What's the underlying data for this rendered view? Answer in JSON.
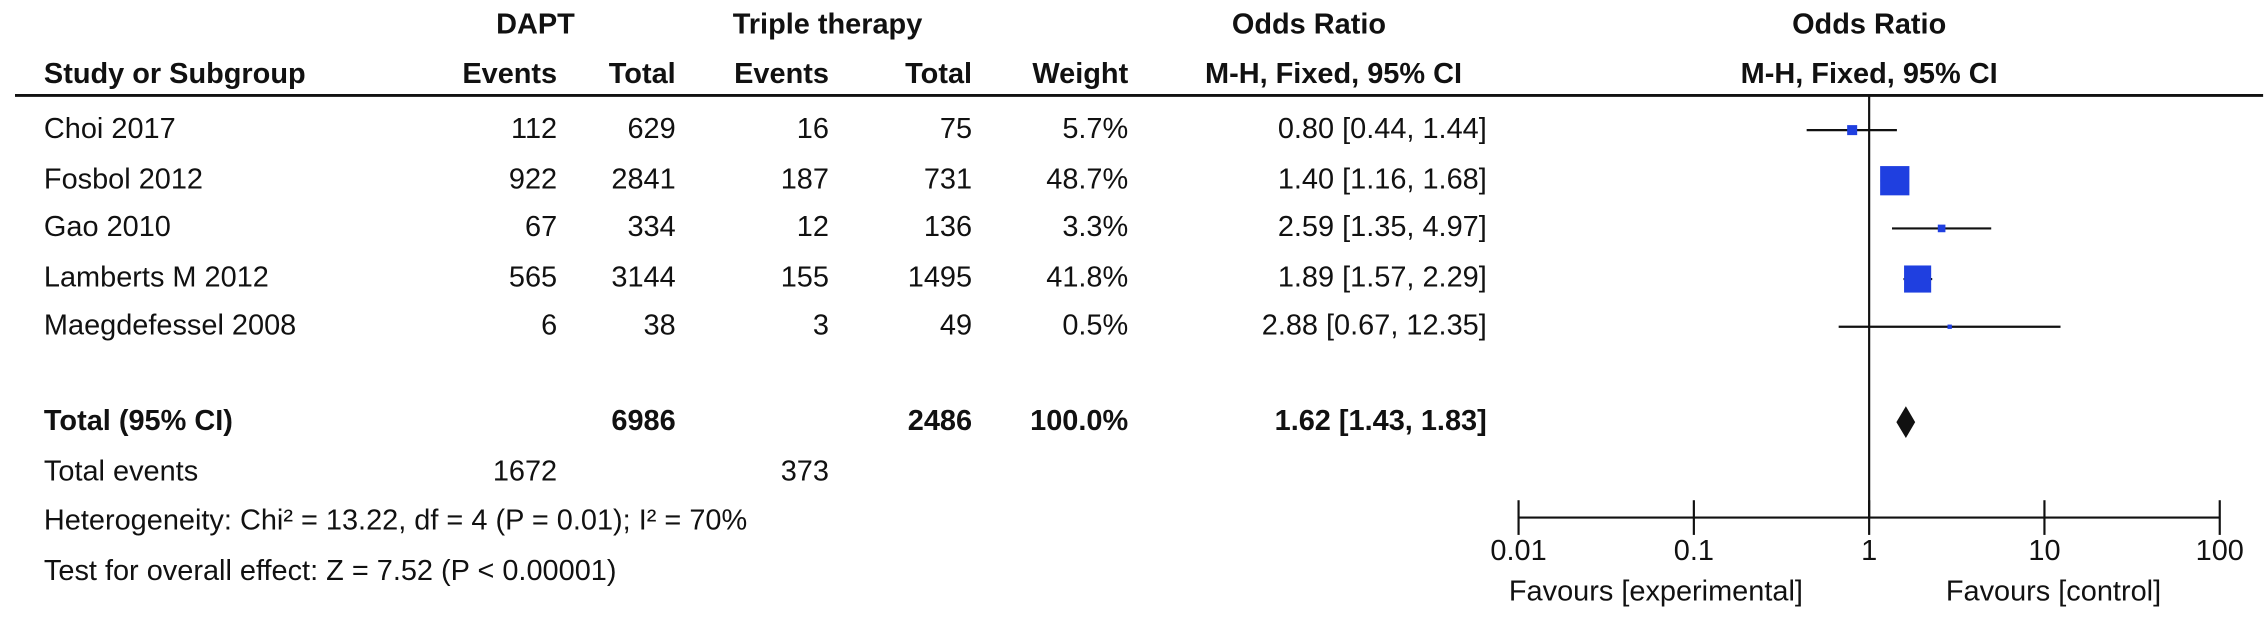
{
  "table": {
    "group_headers": [
      "DAPT",
      "Triple therapy",
      "Odds Ratio"
    ],
    "headers": [
      "Study or Subgroup",
      "Events",
      "Total",
      "Events",
      "Total",
      "Weight",
      "M-H, Fixed, 95% CI"
    ],
    "rows": [
      [
        112,
        629,
        16,
        75
      ],
      [
        922,
        2841,
        187,
        731
      ],
      [
        67,
        334,
        12,
        136
      ],
      [
        565,
        3144,
        155,
        1495
      ],
      [
        6,
        38,
        3,
        49
      ]
    ],
    "total_row": {
      "label": "Total (95% CI)",
      "dapt_total": 6986,
      "tt_total": 2486
    },
    "total_events": {
      "label": "Total events",
      "dapt": 1672,
      "tt": 373
    },
    "heterogeneity": "Heterogeneity: Chi² = 13.22, df = 4 (P = 0.01); I² = 70%",
    "overall_effect": "Test for overall effect: Z = 7.52 (P < 0.00001)"
  },
  "chart_data": {
    "type": "forest",
    "title": "Odds Ratio",
    "subtitle": "M-H, Fixed, 95% CI",
    "categories": [
      "Choi 2017",
      "Fosbol 2012",
      "Gao 2010",
      "Lamberts M 2012",
      "Maegdefessel 2008"
    ],
    "values": [
      0.8,
      1.4,
      2.59,
      1.89,
      2.88
    ],
    "lo": [
      0.44,
      1.16,
      1.35,
      1.57,
      0.67
    ],
    "hi": [
      1.44,
      1.68,
      4.97,
      2.29,
      12.35
    ],
    "value_labels": [
      "0.80 [0.44, 1.44]",
      "1.40 [1.16, 1.68]",
      "2.59 [1.35, 4.97]",
      "1.89 [1.57, 2.29]",
      "2.88 [0.67, 12.35]"
    ],
    "weights": [
      5.7,
      48.7,
      3.3,
      41.8,
      0.5
    ],
    "weight_labels": [
      "5.7%",
      "48.7%",
      "3.3%",
      "41.8%",
      "0.5%"
    ],
    "total": {
      "value": 1.62,
      "lo": 1.43,
      "hi": 1.83,
      "value_label": "1.62 [1.43, 1.83]",
      "weight": 100.0,
      "weight_label": "100.0%"
    },
    "color": "#1f3fe0",
    "xlog": true,
    "xlim": [
      0.01,
      100
    ],
    "xticks": [
      0.01,
      0.1,
      1,
      10,
      100
    ],
    "favours_left": "Favours [experimental]",
    "favours_right": "Favours [control]"
  }
}
